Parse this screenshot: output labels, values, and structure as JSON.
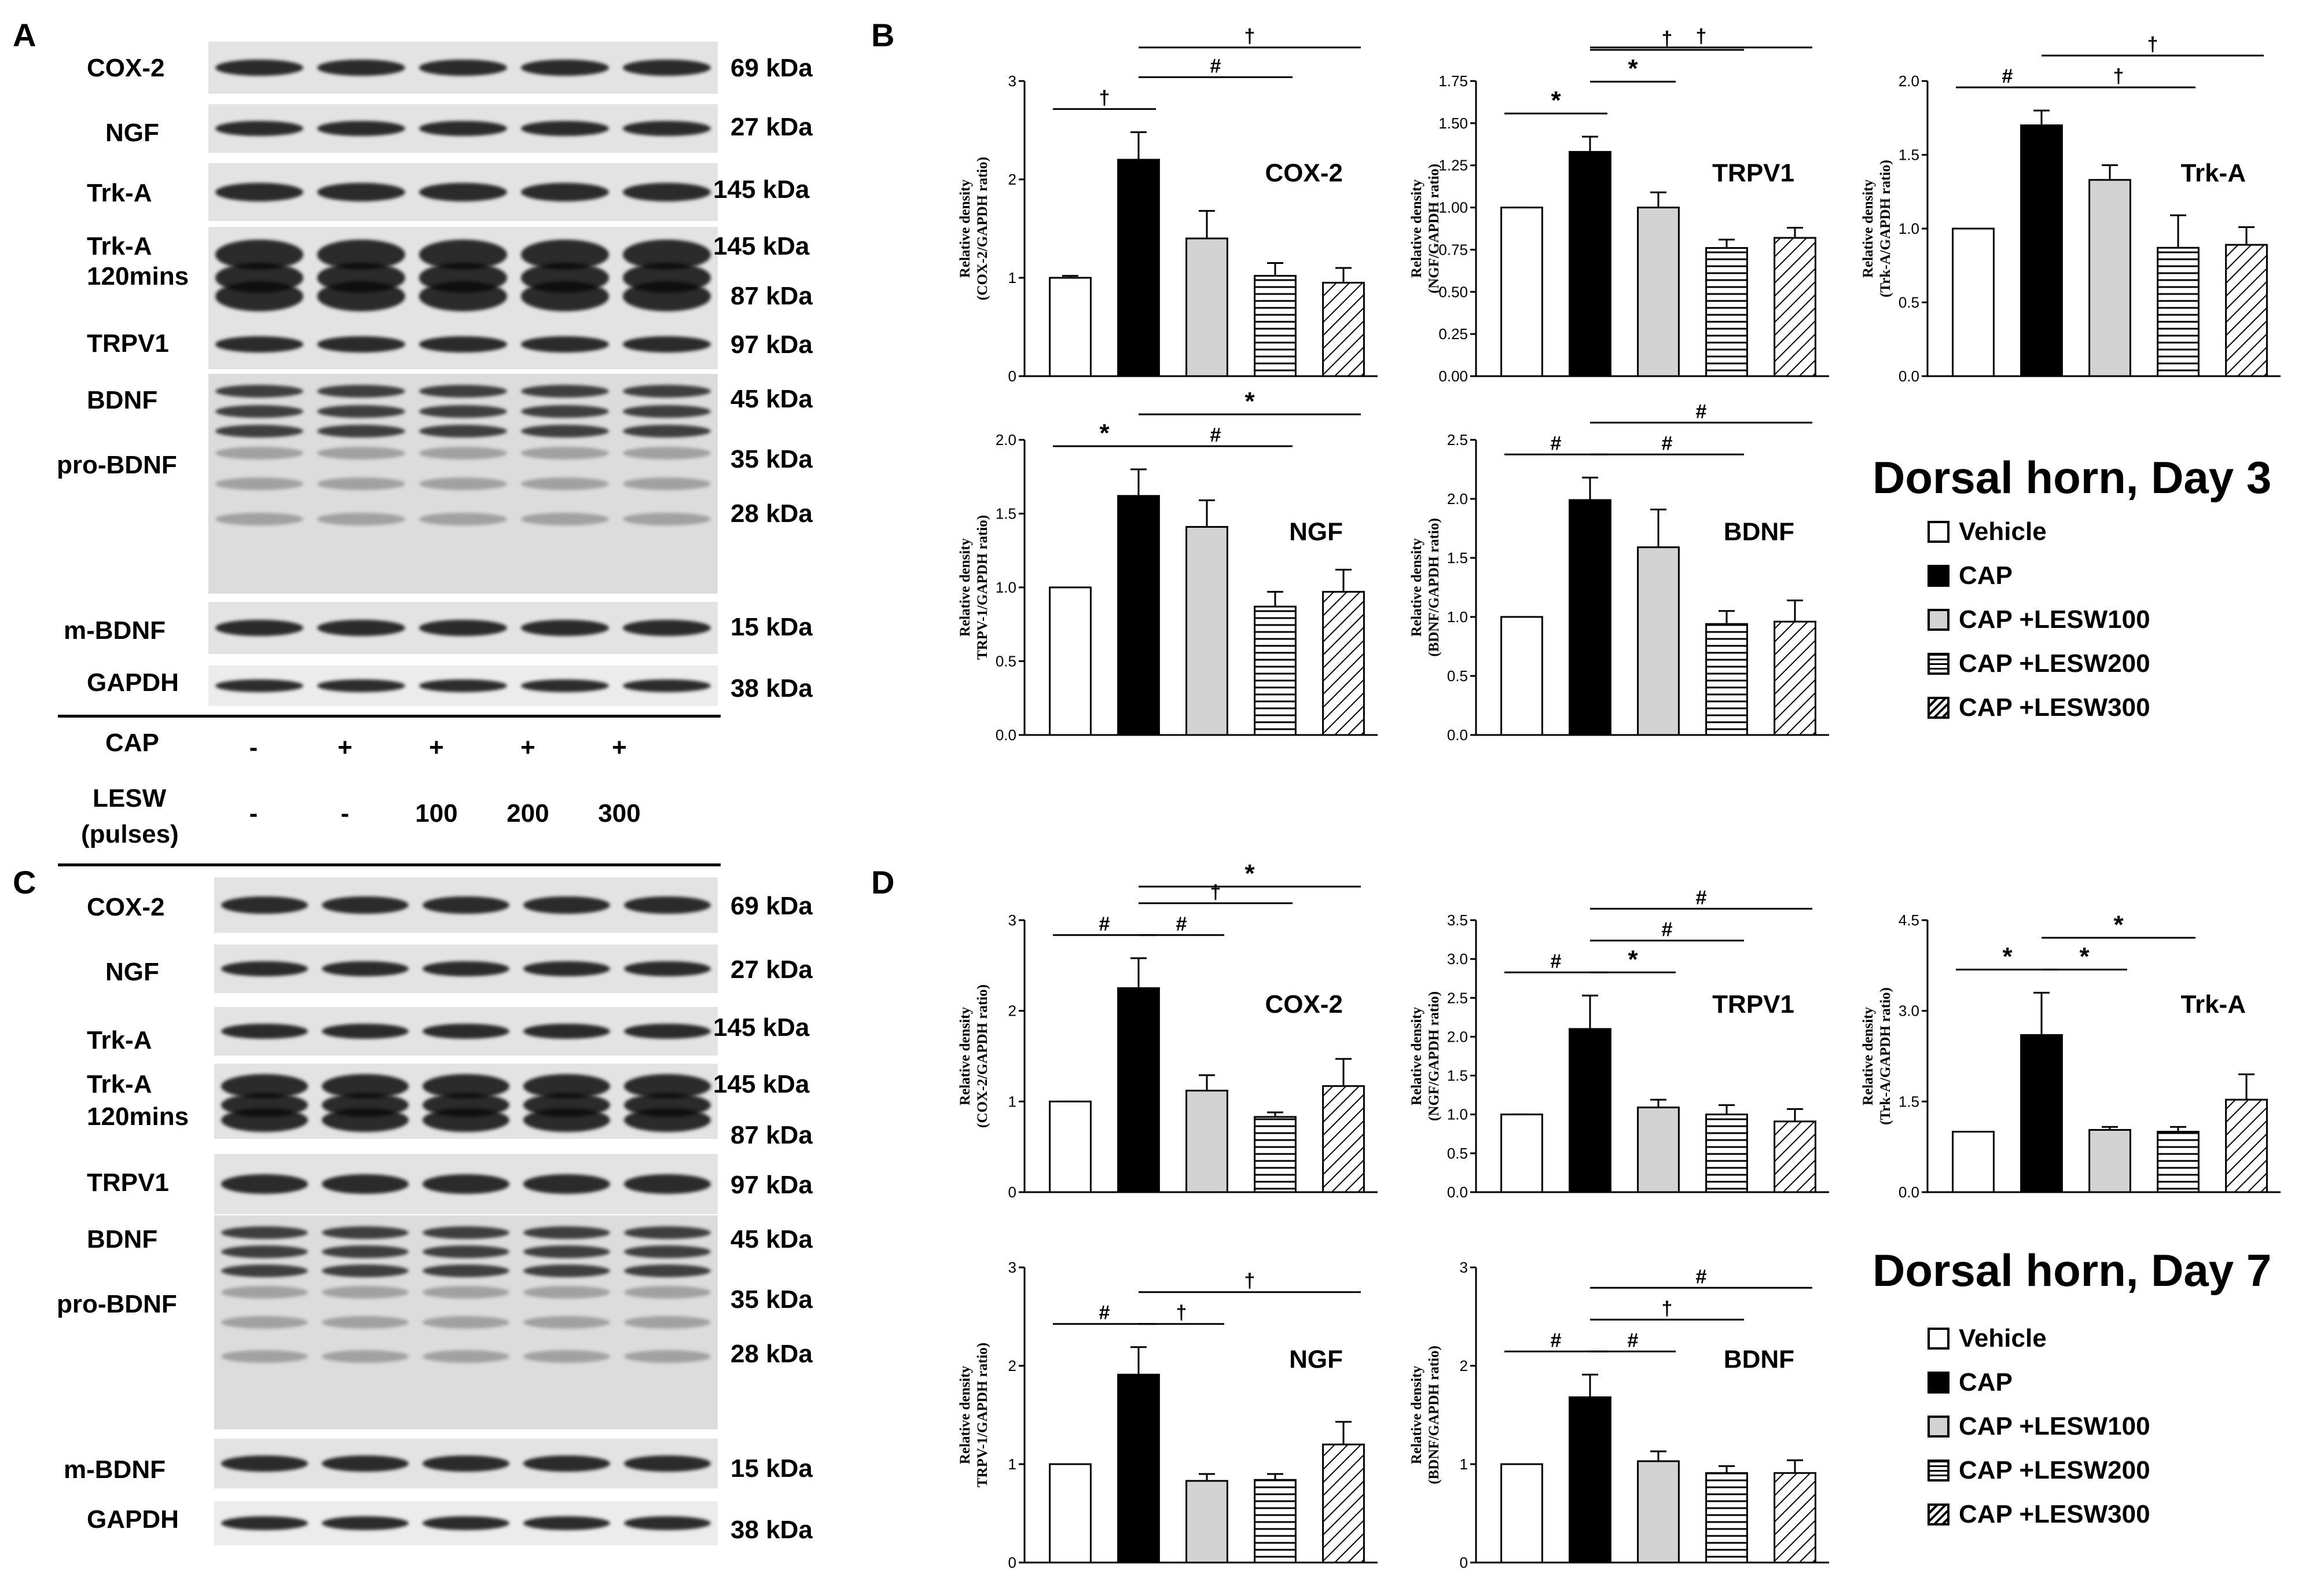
{
  "panels": {
    "a": "A",
    "b": "B",
    "c": "C",
    "d": "D"
  },
  "blot_labels": {
    "cox2": "COX-2",
    "ngf": "NGF",
    "trka": "Trk-A",
    "trka120_line1": "Trk-A",
    "trka120_line2": "120mins",
    "trpv1": "TRPV1",
    "bdnf": "BDNF",
    "probdnf": "pro-BDNF",
    "mbdnf": "m-BDNF",
    "gapdh": "GAPDH"
  },
  "kda": {
    "k69": "69 kDa",
    "k27": "27 kDa",
    "k145": "145 kDa",
    "k87": "87 kDa",
    "k97": "97 kDa",
    "k45": "45 kDa",
    "k35": "35 kDa",
    "k28": "28 kDa",
    "k15": "15 kDa",
    "k38": "38 kDa"
  },
  "conditions": {
    "cap_label": "CAP",
    "lesw_line1": "LESW",
    "lesw_line2": "(pulses)",
    "cap_values": [
      "-",
      "+",
      "+",
      "+",
      "+"
    ],
    "lesw_values": [
      "-",
      "-",
      "100",
      "200",
      "300"
    ]
  },
  "legend": {
    "day3_title": "Dorsal horn, Day 3",
    "day7_title": "Dorsal horn, Day 7",
    "items": [
      "Vehicle",
      "CAP",
      "CAP +LESW100",
      "CAP +LESW200",
      "CAP +LESW300"
    ]
  },
  "colors": {
    "vehicle": "#ffffff",
    "cap": "#000000",
    "lesw100": "#d3d3d3",
    "bar_stroke": "#000000"
  },
  "chart_data": [
    {
      "type": "bar",
      "panel": "B",
      "title": "COX-2",
      "ylabel_line1": "Relative density",
      "ylabel_line2": "(COX-2/GAPDH ratio)",
      "ylim": [
        0,
        3
      ],
      "yticks": [
        "0",
        "1",
        "2",
        "3"
      ],
      "categories": [
        "Vehicle",
        "CAP",
        "CAP +LESW100",
        "CAP +LESW200",
        "CAP +LESW300"
      ],
      "values": [
        1.0,
        2.2,
        1.4,
        1.02,
        0.95
      ],
      "errors": [
        0.02,
        0.28,
        0.28,
        0.13,
        0.15
      ],
      "annotations": [
        {
          "symbol": "†",
          "from": 0,
          "to": 1,
          "level": 0
        },
        {
          "symbol": "#",
          "from": 1,
          "to": 3,
          "level": 1
        },
        {
          "symbol": "†",
          "from": 1,
          "to": 4,
          "level": 2
        }
      ]
    },
    {
      "type": "bar",
      "panel": "B",
      "title": "TRPV1",
      "ylabel_line1": "Relative density",
      "ylabel_line2": "(NGF/GAPDH ratio)",
      "ylim": [
        0,
        1.75
      ],
      "yticks": [
        "0.00",
        "0.25",
        "0.50",
        "0.75",
        "1.00",
        "1.25",
        "1.50",
        "1.75"
      ],
      "categories": [
        "Vehicle",
        "CAP",
        "CAP +LESW100",
        "CAP +LESW200",
        "CAP +LESW300"
      ],
      "values": [
        1.0,
        1.33,
        1.0,
        0.76,
        0.82
      ],
      "errors": [
        0.0,
        0.09,
        0.09,
        0.05,
        0.06
      ],
      "annotations": [
        {
          "symbol": "*",
          "from": 0,
          "to": 1,
          "level": 0
        },
        {
          "symbol": "*",
          "from": 1,
          "to": 2,
          "level": 1
        },
        {
          "symbol": "†",
          "from": 1,
          "to": 3,
          "level": 2
        },
        {
          "symbol": "†",
          "from": 1,
          "to": 4,
          "level": 3
        }
      ]
    },
    {
      "type": "bar",
      "panel": "B",
      "title": "Trk-A",
      "ylabel_line1": "Relative density",
      "ylabel_line2": "(Trk-A/GAPDH ratio)",
      "ylim": [
        0,
        2.0
      ],
      "yticks": [
        "0.0",
        "0.5",
        "1.0",
        "1.5",
        "2.0"
      ],
      "categories": [
        "Vehicle",
        "CAP",
        "CAP +LESW100",
        "CAP +LESW200",
        "CAP +LESW300"
      ],
      "values": [
        1.0,
        1.7,
        1.33,
        0.87,
        0.89
      ],
      "errors": [
        0.0,
        0.1,
        0.1,
        0.22,
        0.12
      ],
      "annotations": [
        {
          "symbol": "#",
          "from": 0,
          "to": 1,
          "level": 0
        },
        {
          "symbol": "†",
          "from": 1,
          "to": 3,
          "level": 0
        },
        {
          "symbol": "†",
          "from": 1,
          "to": 4,
          "level": 1
        }
      ]
    },
    {
      "type": "bar",
      "panel": "B",
      "title": "NGF",
      "ylabel_line1": "Relative density",
      "ylabel_line2": "TRPV-1/GAPDH ratio)",
      "ylim": [
        0,
        2.0
      ],
      "yticks": [
        "0.0",
        "0.5",
        "1.0",
        "1.5",
        "2.0"
      ],
      "categories": [
        "Vehicle",
        "CAP",
        "CAP +LESW100",
        "CAP +LESW200",
        "CAP +LESW300"
      ],
      "values": [
        1.0,
        1.62,
        1.41,
        0.87,
        0.97
      ],
      "errors": [
        0.0,
        0.18,
        0.18,
        0.1,
        0.15
      ],
      "annotations": [
        {
          "symbol": "*",
          "from": 0,
          "to": 1,
          "level": 0
        },
        {
          "symbol": "#",
          "from": 1,
          "to": 3,
          "level": 0
        },
        {
          "symbol": "*",
          "from": 1,
          "to": 4,
          "level": 1
        }
      ]
    },
    {
      "type": "bar",
      "panel": "B",
      "title": "BDNF",
      "ylabel_line1": "Relative density",
      "ylabel_line2": "(BDNF/GAPDH ratio)",
      "ylim": [
        0,
        2.5
      ],
      "yticks": [
        "0.0",
        "0.5",
        "1.0",
        "1.5",
        "2.0",
        "2.5"
      ],
      "categories": [
        "Vehicle",
        "CAP",
        "CAP +LESW100",
        "CAP +LESW200",
        "CAP +LESW300"
      ],
      "values": [
        1.0,
        1.99,
        1.59,
        0.94,
        0.96
      ],
      "errors": [
        0.0,
        0.19,
        0.32,
        0.11,
        0.18
      ],
      "annotations": [
        {
          "symbol": "#",
          "from": 0,
          "to": 1,
          "level": 0
        },
        {
          "symbol": "#",
          "from": 1,
          "to": 3,
          "level": 0
        },
        {
          "symbol": "#",
          "from": 1,
          "to": 4,
          "level": 1
        }
      ]
    },
    {
      "type": "bar",
      "panel": "D",
      "title": "COX-2",
      "ylabel_line1": "Relative density",
      "ylabel_line2": "(COX-2/GAPDH ratio)",
      "ylim": [
        0,
        3
      ],
      "yticks": [
        "0",
        "1",
        "2",
        "3"
      ],
      "categories": [
        "Vehicle",
        "CAP",
        "CAP +LESW100",
        "CAP +LESW200",
        "CAP +LESW300"
      ],
      "values": [
        1.0,
        2.25,
        1.12,
        0.83,
        1.17
      ],
      "errors": [
        0.0,
        0.33,
        0.17,
        0.05,
        0.3
      ],
      "annotations": [
        {
          "symbol": "#",
          "from": 0,
          "to": 1,
          "level": 0
        },
        {
          "symbol": "#",
          "from": 1,
          "to": 2,
          "level": 0
        },
        {
          "symbol": "†",
          "from": 1,
          "to": 3,
          "level": 1
        },
        {
          "symbol": "*",
          "from": 1,
          "to": 4,
          "level": 2
        }
      ]
    },
    {
      "type": "bar",
      "panel": "D",
      "title": "TRPV1",
      "ylabel_line1": "Relative density",
      "ylabel_line2": "(NGF/GAPDH ratio)",
      "ylim": [
        0,
        3.5
      ],
      "yticks": [
        "0.0",
        "0.5",
        "1.0",
        "1.5",
        "2.0",
        "2.5",
        "3.0",
        "3.5"
      ],
      "categories": [
        "Vehicle",
        "CAP",
        "CAP +LESW100",
        "CAP +LESW200",
        "CAP +LESW300"
      ],
      "values": [
        1.0,
        2.1,
        1.09,
        1.0,
        0.91
      ],
      "errors": [
        0.0,
        0.43,
        0.1,
        0.12,
        0.16
      ],
      "annotations": [
        {
          "symbol": "#",
          "from": 0,
          "to": 1,
          "level": 0
        },
        {
          "symbol": "*",
          "from": 1,
          "to": 2,
          "level": 0
        },
        {
          "symbol": "#",
          "from": 1,
          "to": 3,
          "level": 1
        },
        {
          "symbol": "#",
          "from": 1,
          "to": 4,
          "level": 2
        }
      ]
    },
    {
      "type": "bar",
      "panel": "D",
      "title": "Trk-A",
      "ylabel_line1": "Relative density",
      "ylabel_line2": "(Trk-A/GAPDH ratio)",
      "ylim": [
        0,
        4.5
      ],
      "yticks": [
        "0.0",
        "1.5",
        "3.0",
        "4.5"
      ],
      "categories": [
        "Vehicle",
        "CAP",
        "CAP +LESW100",
        "CAP +LESW200",
        "CAP +LESW300"
      ],
      "values": [
        1.0,
        2.6,
        1.03,
        1.0,
        1.53
      ],
      "errors": [
        0.0,
        0.7,
        0.05,
        0.08,
        0.42
      ],
      "annotations": [
        {
          "symbol": "*",
          "from": 0,
          "to": 1,
          "level": 0
        },
        {
          "symbol": "*",
          "from": 1,
          "to": 2,
          "level": 0
        },
        {
          "symbol": "*",
          "from": 1,
          "to": 3,
          "level": 1
        }
      ]
    },
    {
      "type": "bar",
      "panel": "D",
      "title": "NGF",
      "ylabel_line1": "Relative density",
      "ylabel_line2": "TRPV-1/GAPDH ratio)",
      "ylim": [
        0,
        3
      ],
      "yticks": [
        "0",
        "1",
        "2",
        "3"
      ],
      "categories": [
        "Vehicle",
        "CAP",
        "CAP +LESW100",
        "CAP +LESW200",
        "CAP +LESW300"
      ],
      "values": [
        1.0,
        1.91,
        0.83,
        0.84,
        1.2
      ],
      "errors": [
        0.0,
        0.28,
        0.07,
        0.06,
        0.23
      ],
      "annotations": [
        {
          "symbol": "#",
          "from": 0,
          "to": 1,
          "level": 0
        },
        {
          "symbol": "†",
          "from": 1,
          "to": 2,
          "level": 0
        },
        {
          "symbol": "†",
          "from": 1,
          "to": 4,
          "level": 1
        }
      ]
    },
    {
      "type": "bar",
      "panel": "D",
      "title": "BDNF",
      "ylabel_line1": "Relative density",
      "ylabel_line2": "(BDNF/GAPDH ratio)",
      "ylim": [
        0,
        3
      ],
      "yticks": [
        "0",
        "1",
        "2",
        "3"
      ],
      "categories": [
        "Vehicle",
        "CAP",
        "CAP +LESW100",
        "CAP +LESW200",
        "CAP +LESW300"
      ],
      "values": [
        1.0,
        1.68,
        1.03,
        0.91,
        0.91
      ],
      "errors": [
        0.0,
        0.23,
        0.1,
        0.07,
        0.13
      ],
      "annotations": [
        {
          "symbol": "#",
          "from": 0,
          "to": 1,
          "level": 0
        },
        {
          "symbol": "#",
          "from": 1,
          "to": 2,
          "level": 0
        },
        {
          "symbol": "†",
          "from": 1,
          "to": 3,
          "level": 1
        },
        {
          "symbol": "#",
          "from": 1,
          "to": 4,
          "level": 2
        }
      ]
    }
  ]
}
